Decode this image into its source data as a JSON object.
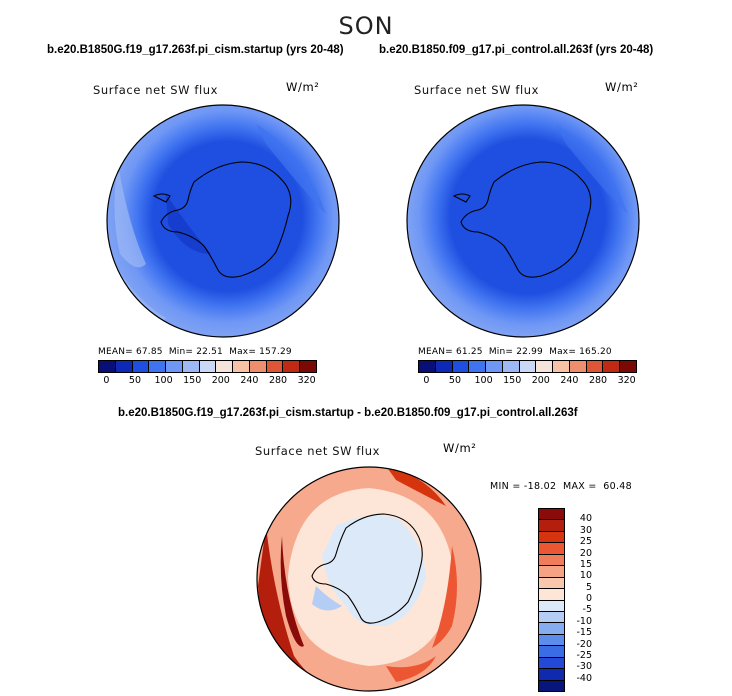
{
  "season": "SON",
  "top_left": {
    "case": "b.e20.B1850G.f19_g17.263f.pi_cism.startup (yrs 20-48)",
    "variable": "Surface net SW flux",
    "units": "W/m²",
    "mean_label": "MEAN=",
    "mean": "67.85",
    "min_label": "Min=",
    "min": "22.51",
    "max_label": "Max=",
    "max": "157.29"
  },
  "top_right": {
    "case": "b.e20.B1850.f09_g17.pi_control.all.263f (yrs 20-48)",
    "variable": "Surface net SW flux",
    "units": "W/m²",
    "mean_label": "MEAN=",
    "mean": "61.25",
    "min_label": "Min=",
    "min": "22.99",
    "max_label": "Max=",
    "max": "165.20"
  },
  "abs_colorbar": {
    "colors": [
      "#0a0f78",
      "#0d29b5",
      "#1e4fe0",
      "#3f73f0",
      "#6f97f5",
      "#9db8f5",
      "#c9d9f5",
      "#f5e4da",
      "#f7c2a6",
      "#ef8e6e",
      "#de5636",
      "#bf2a14",
      "#7a0a05"
    ],
    "labels": [
      "0",
      "50",
      "100",
      "150",
      "200",
      "240",
      "280",
      "320"
    ]
  },
  "difference": {
    "title": "b.e20.B1850G.f19_g17.263f.pi_cism.startup - b.e20.B1850.f09_g17.pi_control.all.263f",
    "variable": "Surface net SW flux",
    "units": "W/m²",
    "minmax": "MIN = -18.02  MAX =  60.48"
  },
  "diff_colorbar": {
    "colors": [
      "#8b0a0a",
      "#b41e0c",
      "#d6340f",
      "#ec5632",
      "#f07c5a",
      "#f5a285",
      "#f9c6ae",
      "#fde6d8",
      "#dce9f8",
      "#b4cdf4",
      "#86adf0",
      "#5c8ded",
      "#3a6ce6",
      "#2449d6",
      "#0f2aae",
      "#08157a"
    ],
    "labels": [
      "40",
      "30",
      "25",
      "20",
      "15",
      "10",
      "5",
      "0",
      "-5",
      "-10",
      "-15",
      "-20",
      "-25",
      "-30",
      "-40"
    ]
  }
}
